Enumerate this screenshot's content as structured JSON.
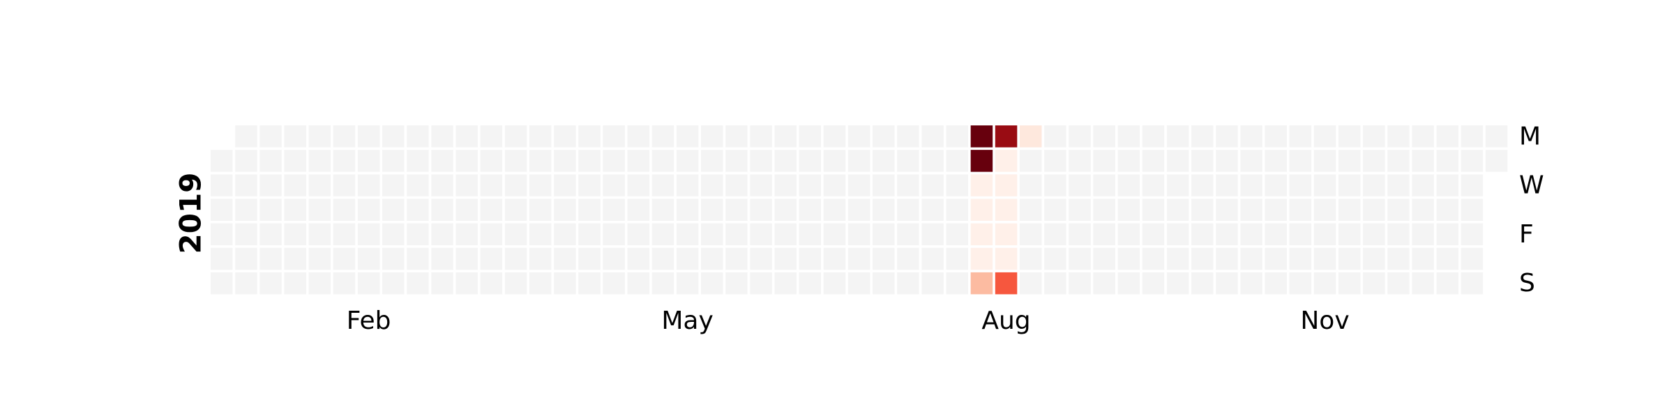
{
  "chart_data": {
    "type": "heatmap",
    "title": "",
    "year_label": "2019",
    "first_day": "2019-01-01",
    "last_day": "2019-12-31",
    "day_labels": [
      {
        "label": "M",
        "weekday": 0
      },
      {
        "label": "W",
        "weekday": 2
      },
      {
        "label": "F",
        "weekday": 4
      },
      {
        "label": "S",
        "weekday": 6
      }
    ],
    "month_labels": [
      {
        "label": "Feb",
        "month": 2
      },
      {
        "label": "May",
        "month": 5
      },
      {
        "label": "Aug",
        "month": 8
      },
      {
        "label": "Nov",
        "month": 11
      }
    ],
    "empty_color": "#f4f4f4",
    "colormap": "Reds",
    "values": [
      {
        "date": "2019-08-05",
        "value": 10
      },
      {
        "date": "2019-08-06",
        "value": 10
      },
      {
        "date": "2019-08-07",
        "value": 0.3
      },
      {
        "date": "2019-08-08",
        "value": 0.3
      },
      {
        "date": "2019-08-09",
        "value": 0.3
      },
      {
        "date": "2019-08-10",
        "value": 0.3
      },
      {
        "date": "2019-08-11",
        "value": 2.5
      },
      {
        "date": "2019-08-12",
        "value": 9
      },
      {
        "date": "2019-08-13",
        "value": 0.3
      },
      {
        "date": "2019-08-14",
        "value": 0.3
      },
      {
        "date": "2019-08-15",
        "value": 0.3
      },
      {
        "date": "2019-08-16",
        "value": 0.3
      },
      {
        "date": "2019-08-17",
        "value": 0.3
      },
      {
        "date": "2019-08-18",
        "value": 5.5
      },
      {
        "date": "2019-08-19",
        "value": 0.8
      }
    ],
    "value_range": [
      0,
      10
    ]
  }
}
